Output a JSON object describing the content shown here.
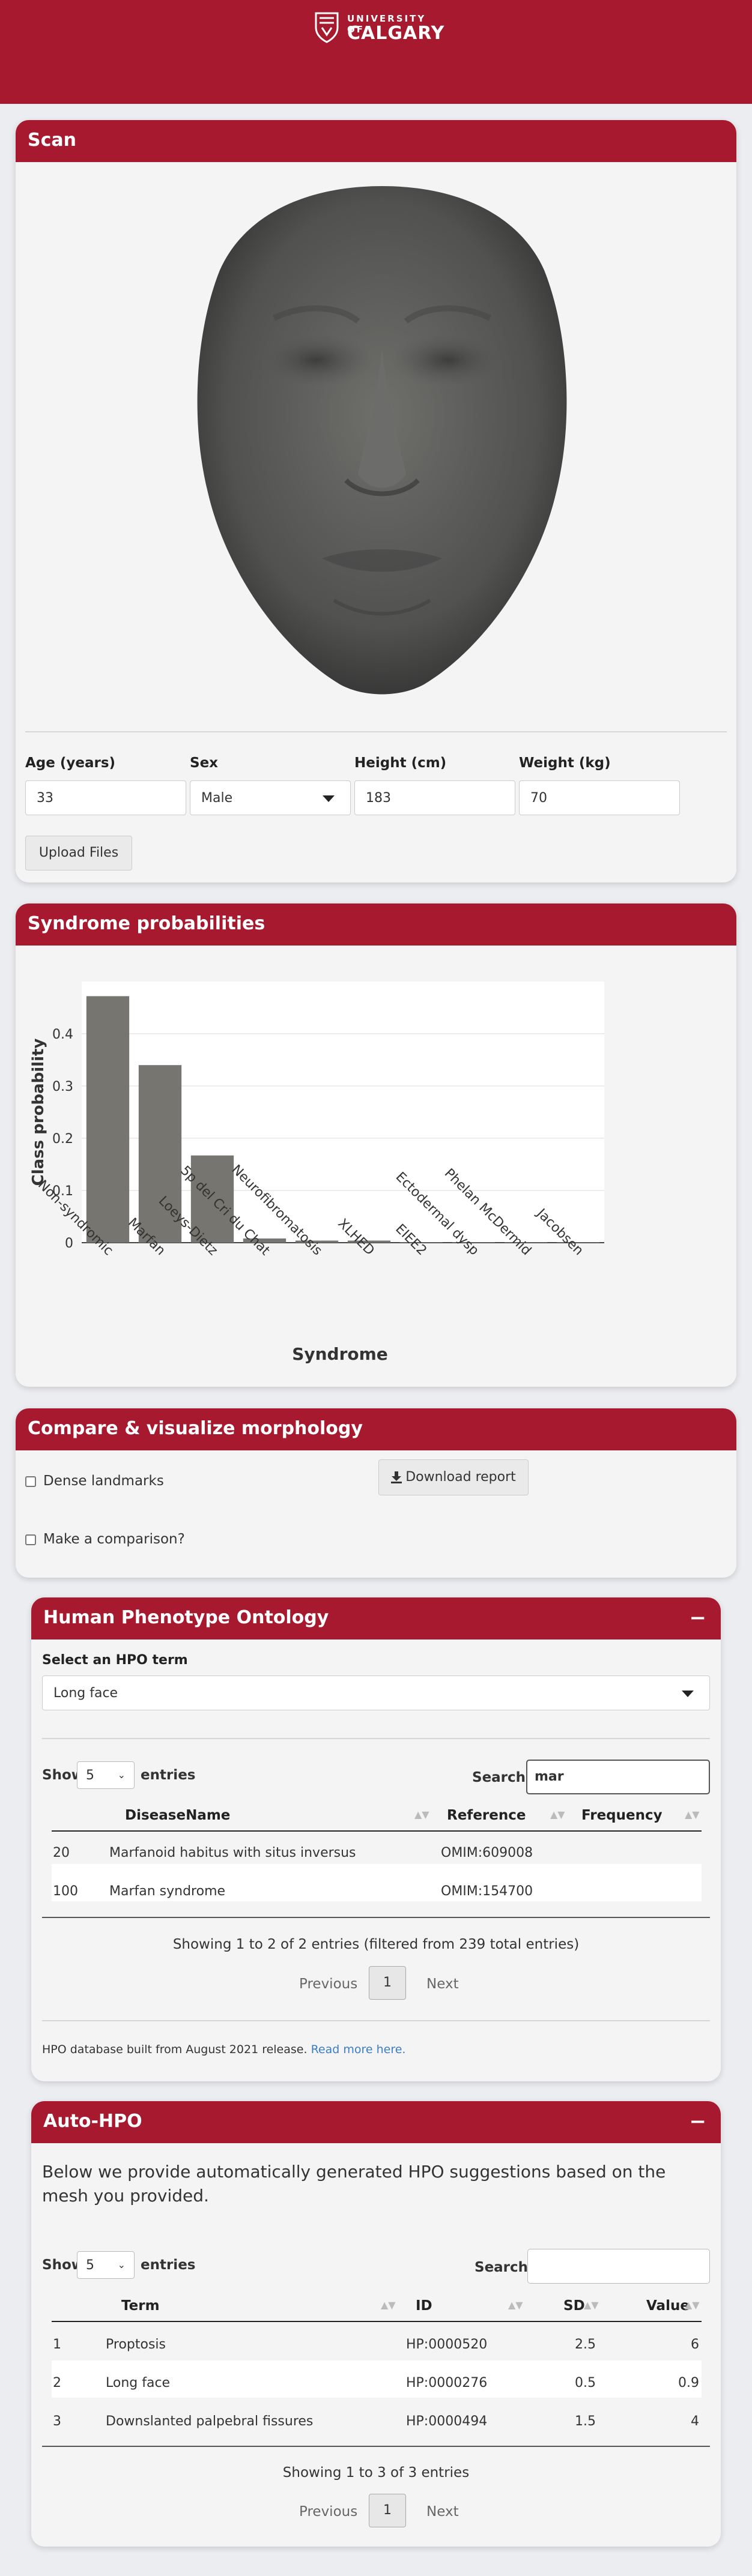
{
  "header": {
    "logo_line1": "UNIVERSITY OF",
    "logo_line2": "CALGARY",
    "brand_color": "#a6192e"
  },
  "scan": {
    "title": "Scan",
    "fields": [
      {
        "label": "Age (years)",
        "value": "33"
      },
      {
        "label": "Sex",
        "value": "Male"
      },
      {
        "label": "Height (cm)",
        "value": "183"
      },
      {
        "label": "Weight (kg)",
        "value": "70"
      }
    ],
    "upload_label": "Upload Files"
  },
  "syndrome": {
    "title": "Syndrome probabilities",
    "chart_data": {
      "type": "bar",
      "categories": [
        "Non-syndromic",
        "Marfan",
        "Loeys-Dietz",
        "5p del Cri du Chat",
        "Neurofibromatosis",
        "XLHED",
        "EIEE2",
        "Ectodermal dysp",
        "Phelan McDermid",
        "Jacobsen"
      ],
      "values": [
        0.472,
        0.34,
        0.167,
        0.008,
        0.004,
        0.004,
        0.001,
        0.001,
        0.001,
        0.001
      ],
      "xlabel": "Syndrome",
      "ylabel": "Class probability",
      "ylim": [
        0,
        0.5
      ],
      "yticks": [
        0,
        0.1,
        0.2,
        0.3,
        0.4
      ],
      "ytick_labels": [
        "0",
        "0.1",
        "0.2",
        "0.3",
        "0.4"
      ],
      "grid": true,
      "bar_color": "#777570"
    }
  },
  "compare": {
    "title": "Compare & visualize morphology",
    "dense_label": "Dense landmarks",
    "comparison_label": "Make a comparison?",
    "download_label": "Download report"
  },
  "hpo": {
    "title": "Human Phenotype Ontology",
    "collapse": "−",
    "select_label": "Select an HPO term",
    "selected": "Long face",
    "show": "Show",
    "entries_value": "5",
    "entries": "entries",
    "search_label": "Search:",
    "search_value": "mar",
    "columns": [
      "DiseaseName",
      "Reference",
      "Frequency"
    ],
    "rows": [
      {
        "id": "20",
        "name": "Marfanoid habitus with situs inversus",
        "ref": "OMIM:609008",
        "freq": ""
      },
      {
        "id": "100",
        "name": "Marfan syndrome",
        "ref": "OMIM:154700",
        "freq": ""
      }
    ],
    "info": "Showing 1 to 2 of 2 entries (filtered from 239 total entries)",
    "prev": "Previous",
    "page": "1",
    "next": "Next",
    "footnote": "HPO database built from August 2021 release.",
    "read_more": "Read more here."
  },
  "autohpo": {
    "title": "Auto-HPO",
    "collapse": "−",
    "intro": "Below we provide automatically generated HPO suggestions based on the mesh you provided.",
    "show": "Show",
    "entries_value": "5",
    "entries": "entries",
    "search_label": "Search:",
    "search_value": "",
    "columns": [
      "Term",
      "ID",
      "SD",
      "Value"
    ],
    "rows": [
      {
        "n": "1",
        "term": "Proptosis",
        "id": "HP:0000520",
        "sd": "2.5",
        "value": "6"
      },
      {
        "n": "2",
        "term": "Long face",
        "id": "HP:0000276",
        "sd": "0.5",
        "value": "0.9"
      },
      {
        "n": "3",
        "term": "Downslanted palpebral fissures",
        "id": "HP:0000494",
        "sd": "1.5",
        "value": "4"
      }
    ],
    "info": "Showing 1 to 3 of 3 entries",
    "prev": "Previous",
    "page": "1",
    "next": "Next"
  }
}
